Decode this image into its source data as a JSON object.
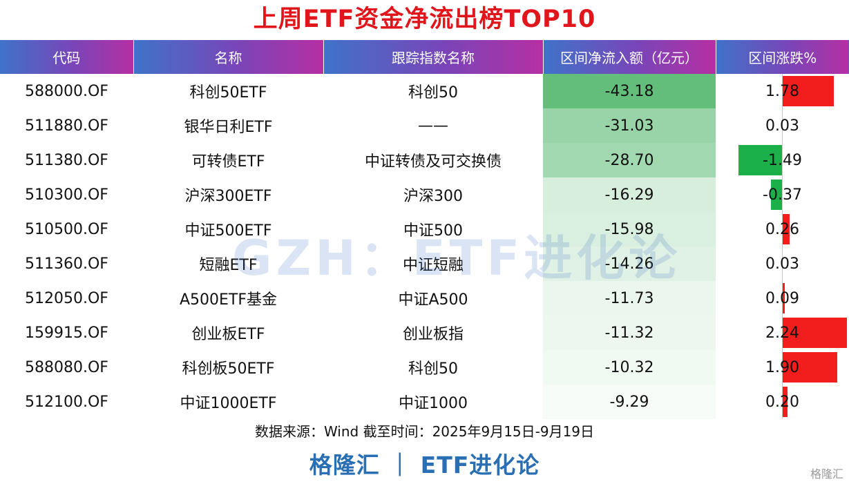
{
  "title": "上周ETF资金净流出榜TOP10",
  "watermark": "GZH：ETF进化论",
  "source": "数据来源：Wind 截至时间：2025年9月15日-9月19日",
  "footer": "格隆汇 ｜ ETF进化论",
  "corner_logo": "格隆汇",
  "colors": {
    "header_start": "#3f73c9",
    "header_end": "#b62fa3",
    "title": "#e0161c",
    "positive": "#f21d1d",
    "negative": "#1bb04a",
    "heat_strong": "#63be7b",
    "heat_weak": "#ffffff",
    "footer": "#2a6fb3"
  },
  "chart_data": {
    "type": "table",
    "columns": [
      "代码",
      "名称",
      "跟踪指数名称",
      "区间净流入额（亿元）",
      "区间涨跌%"
    ],
    "rows": [
      {
        "code": "588000.OF",
        "name": "科创50ETF",
        "index": "科创50",
        "flow": "-43.18",
        "chg": "1.78"
      },
      {
        "code": "511880.OF",
        "name": "银华日利ETF",
        "index": "——",
        "flow": "-31.03",
        "chg": "0.03"
      },
      {
        "code": "511380.OF",
        "name": "可转债ETF",
        "index": "中证转债及可交换债",
        "flow": "-28.70",
        "chg": "-1.49"
      },
      {
        "code": "510300.OF",
        "name": "沪深300ETF",
        "index": "沪深300",
        "flow": "-16.29",
        "chg": "-0.37"
      },
      {
        "code": "510500.OF",
        "name": "中证500ETF",
        "index": "中证500",
        "flow": "-15.98",
        "chg": "0.26"
      },
      {
        "code": "511360.OF",
        "name": "短融ETF",
        "index": "中证短融",
        "flow": "-14.26",
        "chg": "0.03"
      },
      {
        "code": "512050.OF",
        "name": "A500ETF基金",
        "index": "中证A500",
        "flow": "-11.73",
        "chg": "0.09"
      },
      {
        "code": "159915.OF",
        "name": "创业板ETF",
        "index": "创业板指",
        "flow": "-11.32",
        "chg": "2.24"
      },
      {
        "code": "588080.OF",
        "name": "科创板50ETF",
        "index": "科创50",
        "flow": "-10.32",
        "chg": "1.90"
      },
      {
        "code": "512100.OF",
        "name": "中证1000ETF",
        "index": "中证1000",
        "flow": "-9.29",
        "chg": "0.20"
      }
    ]
  }
}
